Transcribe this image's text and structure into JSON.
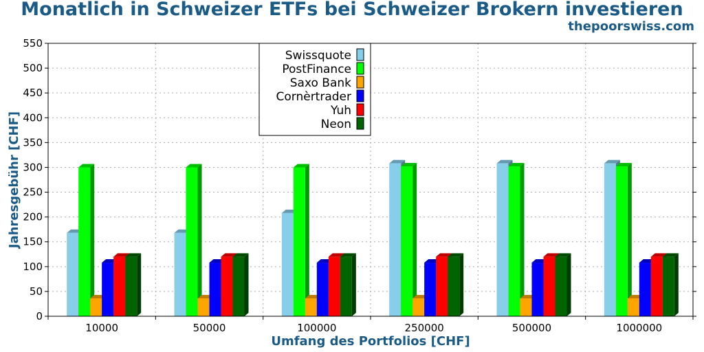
{
  "title": "Monatlich in Schweizer ETFs bei Schweizer Brokern investieren",
  "subtitle": "thepoorswiss.com",
  "chart_data": {
    "type": "bar",
    "xlabel": "Umfang des Portfolios [CHF]",
    "ylabel": "Jahresgebühr [CHF]",
    "ylim": [
      0,
      550
    ],
    "yticks": [
      0,
      50,
      100,
      150,
      200,
      250,
      300,
      350,
      400,
      450,
      500,
      550
    ],
    "grid": true,
    "legend_position": "top-center",
    "categories": [
      "10000",
      "50000",
      "100000",
      "250000",
      "500000",
      "1000000"
    ],
    "series": [
      {
        "name": "Swissquote",
        "color": "#87ceeb",
        "values": [
          168,
          168,
          208,
          308,
          308,
          308
        ]
      },
      {
        "name": "PostFinance",
        "color": "#00ff00",
        "values": [
          300,
          300,
          300,
          302,
          302,
          302
        ]
      },
      {
        "name": "Saxo Bank",
        "color": "#ffa500",
        "values": [
          36,
          36,
          36,
          36,
          36,
          36
        ]
      },
      {
        "name": "Cornèrtrader",
        "color": "#0000ff",
        "values": [
          108,
          108,
          108,
          108,
          108,
          108
        ]
      },
      {
        "name": "Yuh",
        "color": "#ff0000",
        "values": [
          120,
          120,
          120,
          120,
          120,
          120
        ]
      },
      {
        "name": "Neon",
        "color": "#006400",
        "values": [
          120,
          120,
          120,
          120,
          120,
          120
        ]
      }
    ]
  }
}
